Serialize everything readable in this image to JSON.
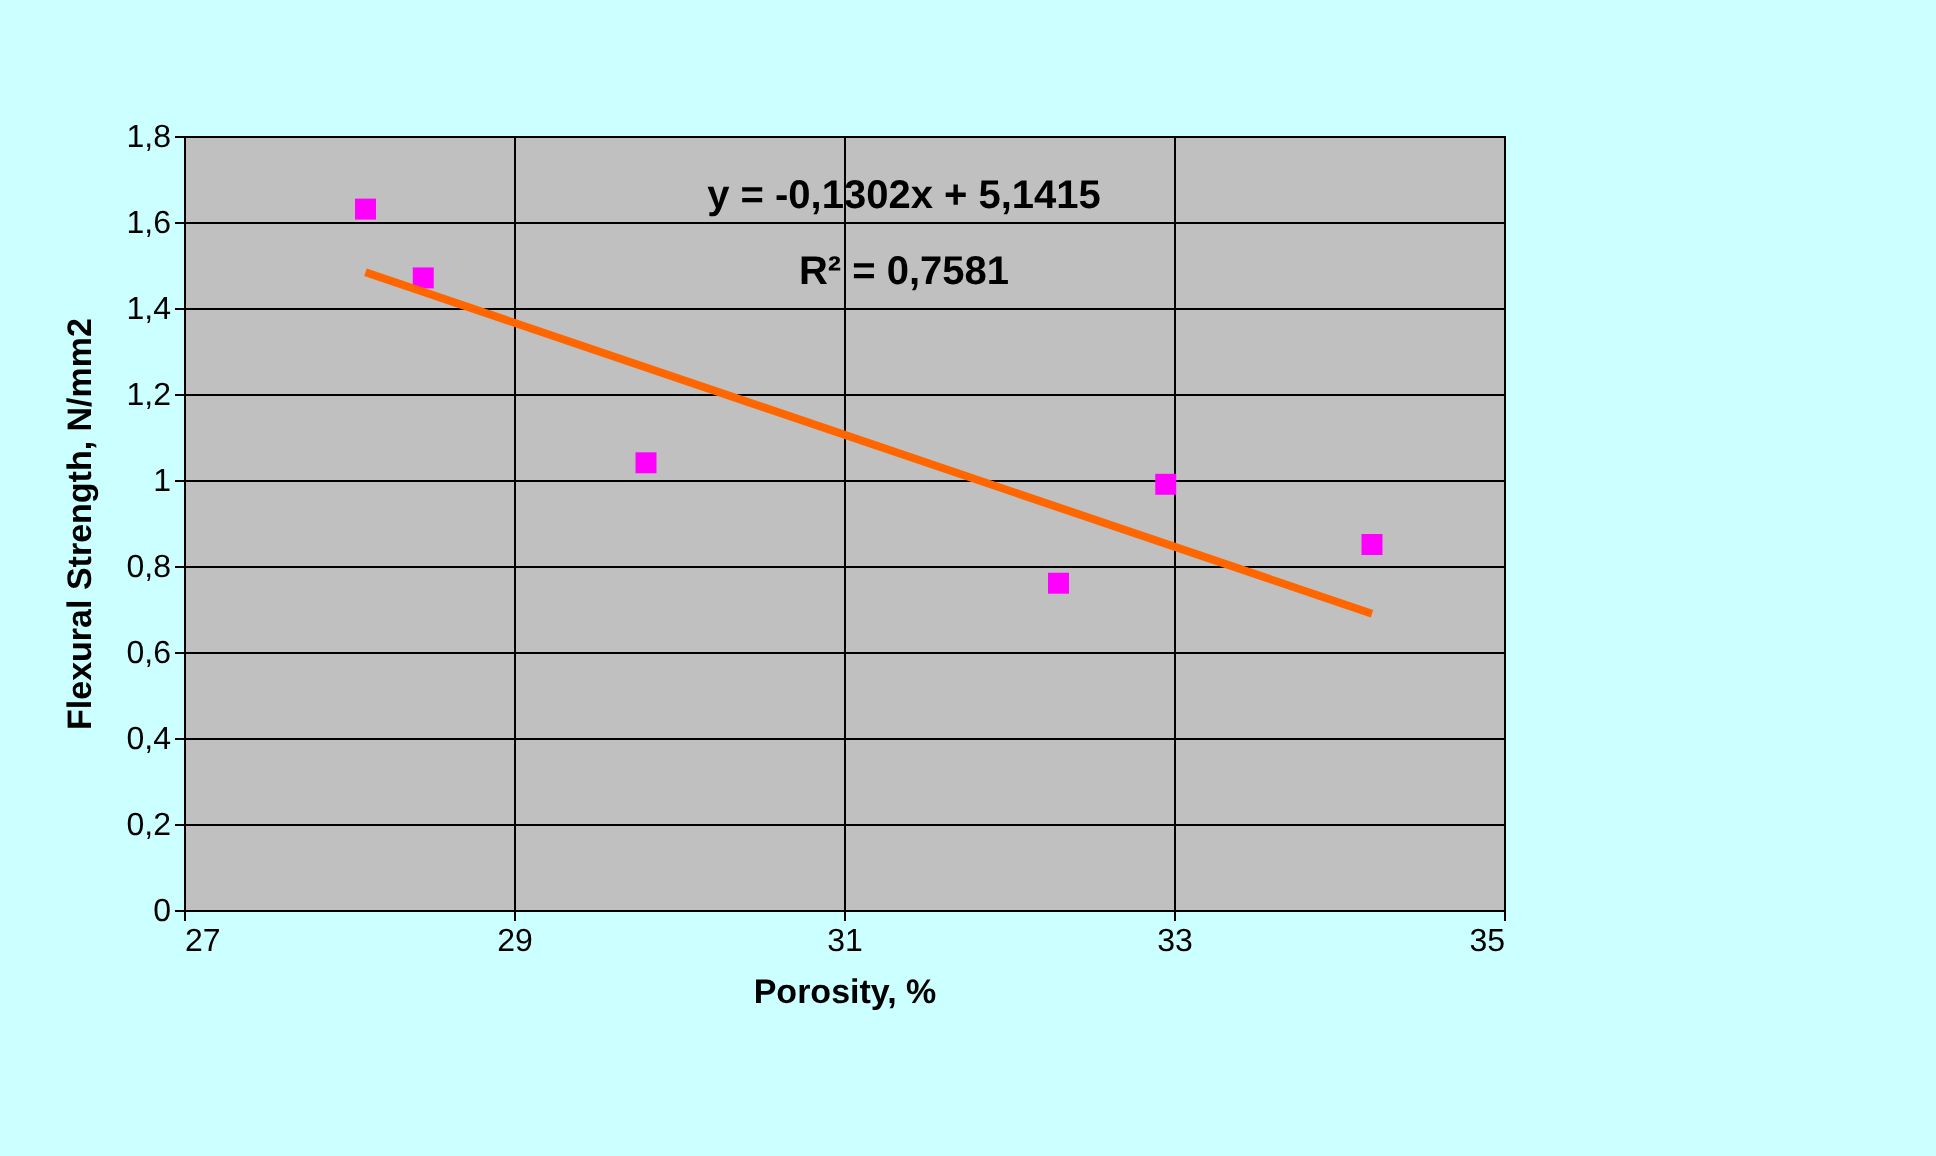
{
  "chart_data": {
    "type": "scatter",
    "xlabel": "Porosity, %",
    "ylabel": "Flexural Strength, N/mm2",
    "series": [
      {
        "color": "#ff00ff",
        "marker": "square",
        "x": [
          28.1,
          28.45,
          29.8,
          32.3,
          32.95,
          34.2
        ],
        "values": [
          1.63,
          1.47,
          1.04,
          0.76,
          0.99,
          0.85
        ]
      },
      {
        "type": "line",
        "color": "#ff6600",
        "x": [
          28.1,
          34.2
        ],
        "values": [
          1.483,
          0.689
        ]
      }
    ],
    "xlim": [
      27,
      35
    ],
    "xticks": [
      27,
      29,
      31,
      33,
      35
    ],
    "ylim": [
      0,
      1.8
    ],
    "yticks": [
      0,
      {
        "value": 0.2,
        "label": "0,2"
      },
      {
        "value": 0.4,
        "label": "0,4"
      },
      {
        "value": 0.6,
        "label": "0,6"
      },
      {
        "value": 0.8,
        "label": "0,8"
      },
      1,
      {
        "value": 1.2,
        "label": "1,2"
      },
      {
        "value": 1.4,
        "label": "1,4"
      },
      {
        "value": 1.6,
        "label": "1,6"
      },
      {
        "value": 1.8,
        "label": "1,8"
      }
    ],
    "grid": true,
    "line_style": "solid",
    "annotations": [
      "y = -0,1302x + 5,1415",
      "R² = 0,7581"
    ]
  }
}
